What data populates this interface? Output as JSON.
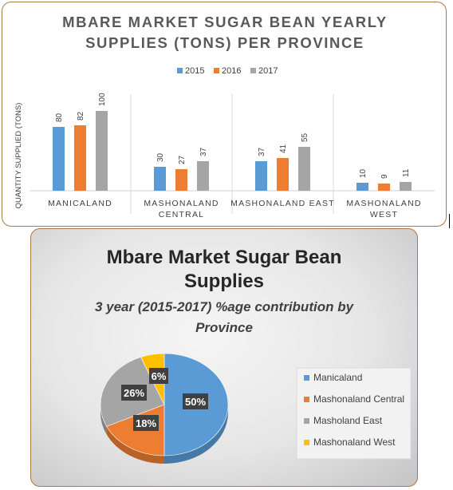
{
  "colors": {
    "s2015": "#5b9bd5",
    "s2016": "#ed7d31",
    "s2017": "#a5a5a5",
    "west": "#ffc000",
    "title": "#595959",
    "labelbox": "#404040"
  },
  "chart_data": [
    {
      "type": "bar",
      "title": "MBARE MARKET SUGAR BEAN YEARLY SUPPLIES (TONS) PER PROVINCE",
      "title_lines": [
        "MBARE MARKET SUGAR BEAN YEARLY",
        "SUPPLIES (TONS) PER PROVINCE"
      ],
      "ylabel": "QUANTITY SUPPLIED (TONS)",
      "xlabel": "",
      "ylim": [
        0,
        120
      ],
      "grid": false,
      "legend": "top",
      "categories": [
        "MANICALAND",
        "MASHONALAND CENTRAL",
        "MASHONALAND EAST",
        "MASHONALAND WEST"
      ],
      "category_lines": [
        [
          "MANICALAND"
        ],
        [
          "MASHONALAND",
          "CENTRAL"
        ],
        [
          "MASHONALAND EAST"
        ],
        [
          "MASHONALAND",
          "WEST"
        ]
      ],
      "series": [
        {
          "name": "2015",
          "values": [
            80,
            30,
            37,
            10
          ]
        },
        {
          "name": "2016",
          "values": [
            82,
            27,
            41,
            9
          ]
        },
        {
          "name": "2017",
          "values": [
            100,
            37,
            55,
            11
          ]
        }
      ]
    },
    {
      "type": "pie",
      "title": "Mbare Market Sugar Bean Supplies",
      "title_lines": [
        "Mbare Market Sugar Bean",
        "Supplies"
      ],
      "subtitle": "3 year (2015-2017) %age contribution by Province",
      "subtitle_lines": [
        "3 year (2015-2017) %age contribution by",
        "Province"
      ],
      "legend": "right",
      "labels": [
        "Manicaland",
        "Mashonaland Central",
        "Masholand East",
        "Mashonaland West"
      ],
      "values": [
        50,
        18,
        26,
        6
      ],
      "value_labels": [
        "50%",
        "18%",
        "26%",
        "6%"
      ]
    }
  ]
}
